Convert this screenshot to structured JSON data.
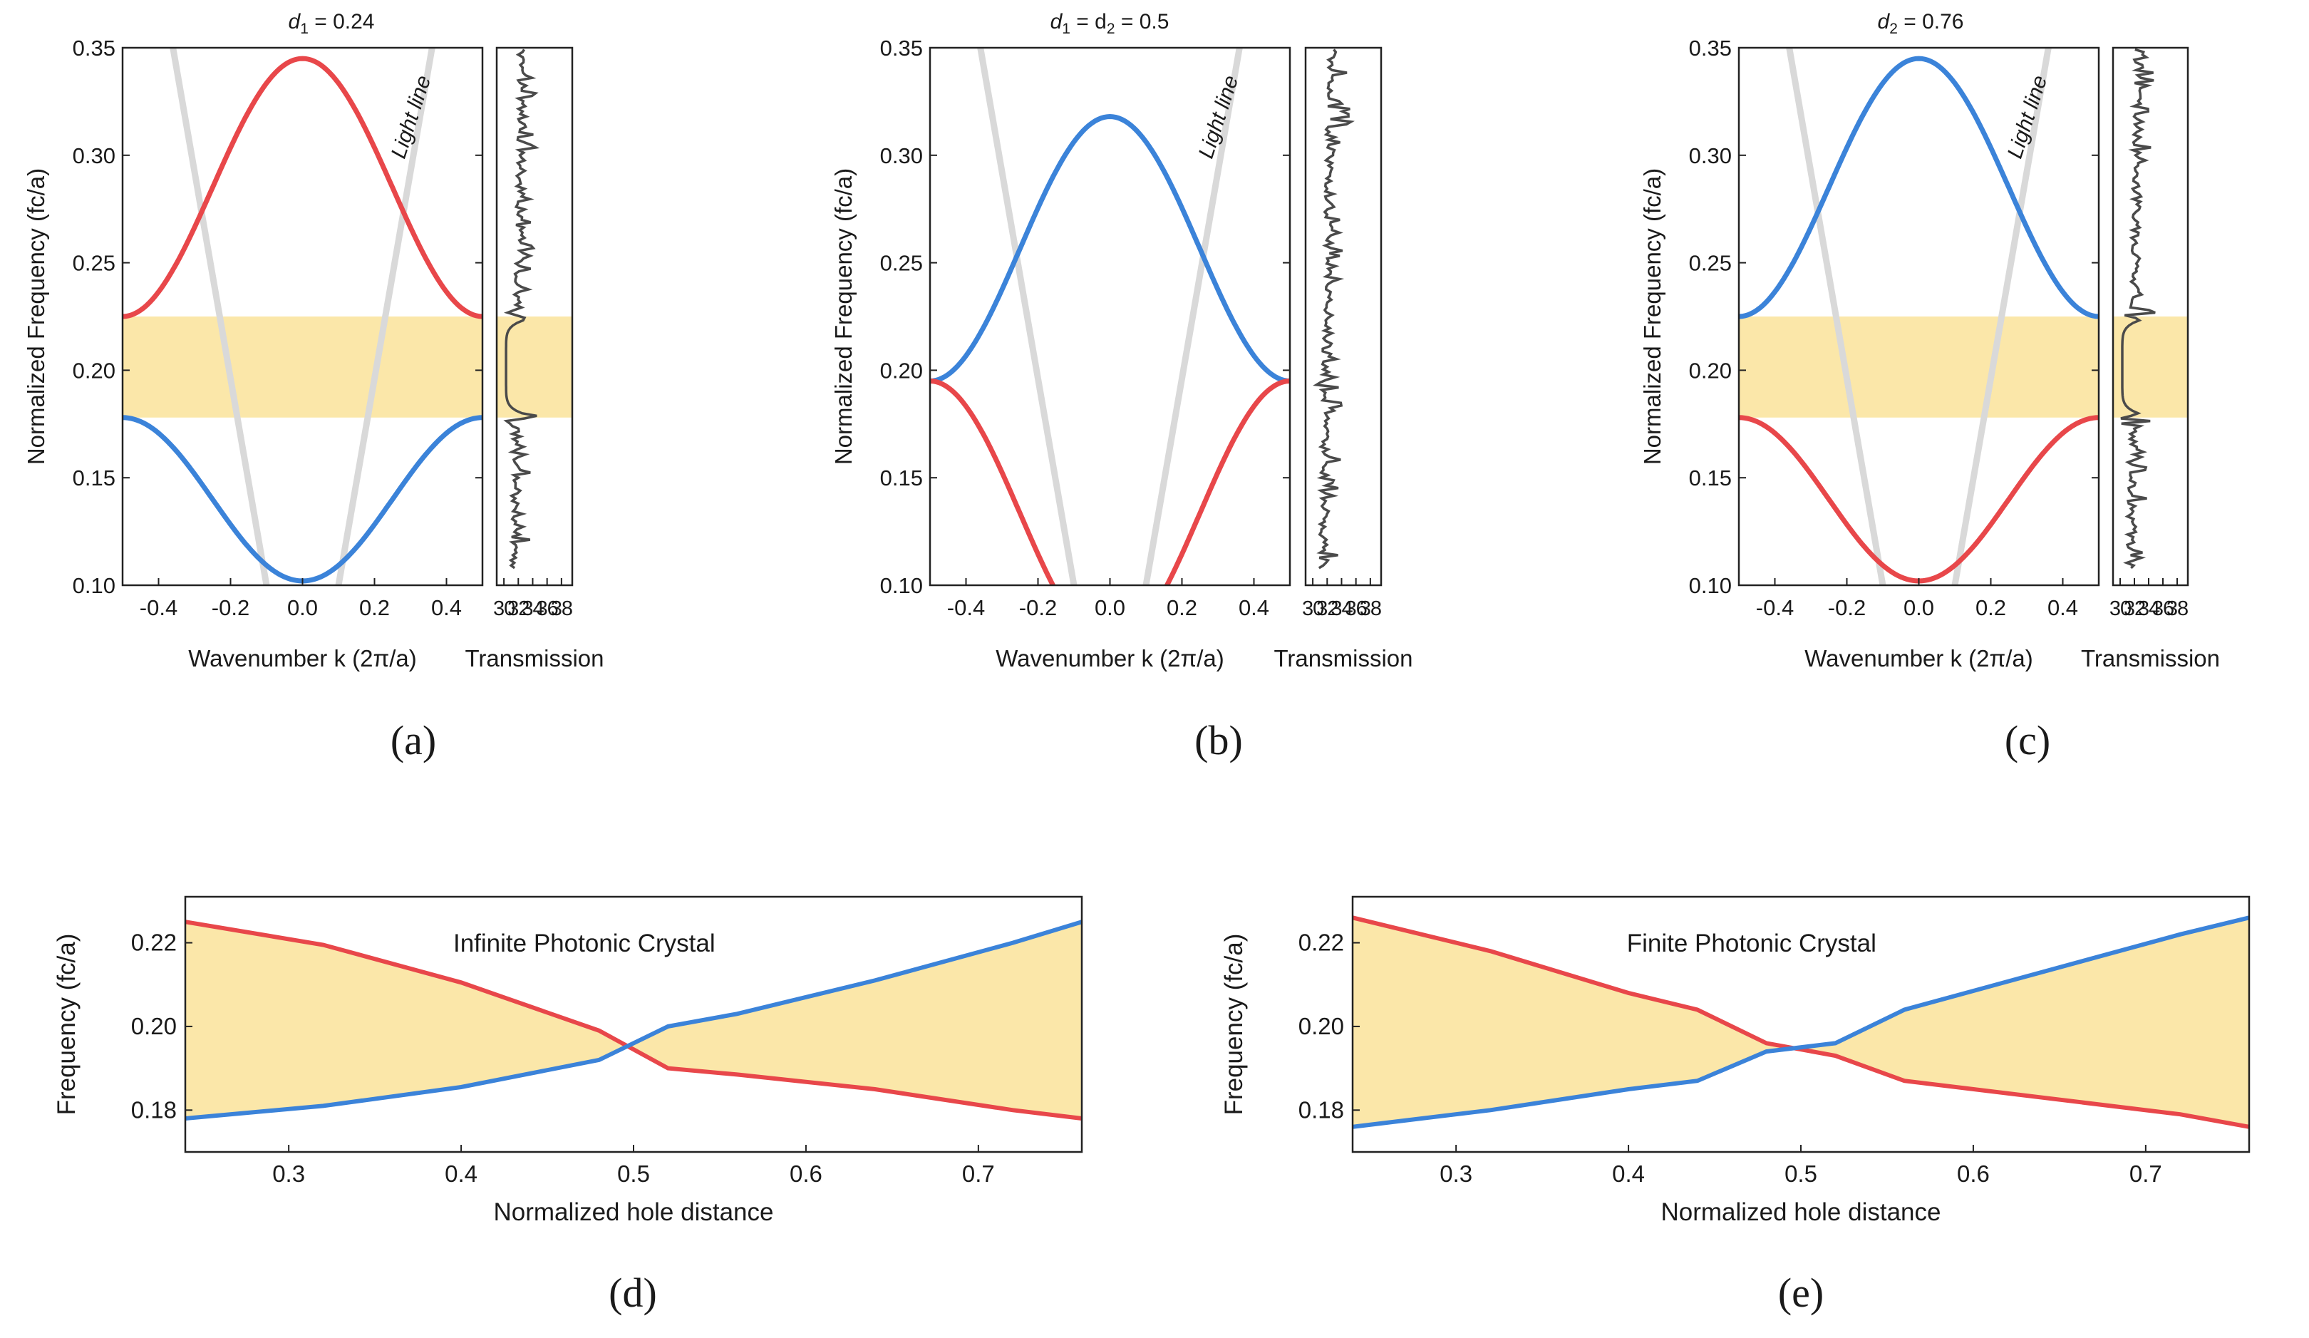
{
  "figure": {
    "panels_top": [
      {
        "id": "a",
        "title_main": "d",
        "title_sub": "1",
        "title_rest": " = 0.24",
        "caption": "(a)",
        "ylabel": "Normalized  Frequency  (fc/a)",
        "xlabel": "Wavenumber k (2π/a)",
        "trans_xlabel": "Transmission",
        "light_line_label": "Light line",
        "upper_band_color": "#e8474a",
        "lower_band_color": "#3b83d9",
        "upper_k0": 0.345,
        "upper_edge": 0.225,
        "lower_k0": 0.102,
        "lower_edge": 0.178,
        "gap": [
          0.178,
          0.225
        ],
        "trans_edge_low": 0.178,
        "trans_edge_high": 0.225
      },
      {
        "id": "b",
        "title_main": "d",
        "title_sub": "1",
        "title_rest": " = d",
        "title_sub2": "2",
        "title_end": " = 0.5",
        "caption": "(b)",
        "ylabel": "Normalized Frequency (fc/a)",
        "xlabel": "Wavenumber k (2π/a)",
        "trans_xlabel": "Transmission",
        "light_line_label": "Light line",
        "upper_band_color": "#3b83d9",
        "lower_band_color": "#e8474a",
        "upper_k0": 0.318,
        "upper_edge": 0.195,
        "lower_k0": 0.072,
        "lower_edge": 0.195,
        "gap": null,
        "trans_edge_low": 0.195,
        "trans_edge_high": 0.318
      },
      {
        "id": "c",
        "title_main": "d",
        "title_sub": "2",
        "title_rest": " = 0.76",
        "caption": "(c)",
        "ylabel": "Normalized Frequency (fc/a)",
        "xlabel": "Wavenumber k (2π/a)",
        "trans_xlabel": "Transmission",
        "light_line_label": "Light line",
        "upper_band_color": "#3b83d9",
        "lower_band_color": "#e8474a",
        "upper_k0": 0.345,
        "upper_edge": 0.225,
        "lower_k0": 0.102,
        "lower_edge": 0.178,
        "gap": [
          0.178,
          0.225
        ],
        "trans_edge_low": 0.178,
        "trans_edge_high": 0.225
      }
    ],
    "panels_bottom": [
      {
        "id": "d",
        "caption": "(d)",
        "annotation": "Infinite Photonic Crystal",
        "ylabel": "Frequency (fc/a)",
        "xlabel": "Normalized hole distance",
        "red_x": [
          0.24,
          0.32,
          0.4,
          0.48,
          0.52,
          0.56,
          0.64,
          0.72,
          0.76
        ],
        "red_y": [
          0.225,
          0.2195,
          0.2105,
          0.199,
          0.19,
          0.1885,
          0.185,
          0.18,
          0.178
        ],
        "blue_x": [
          0.24,
          0.32,
          0.4,
          0.48,
          0.52,
          0.56,
          0.64,
          0.72,
          0.76
        ],
        "blue_y": [
          0.178,
          0.181,
          0.1855,
          0.192,
          0.2,
          0.203,
          0.211,
          0.22,
          0.225
        ]
      },
      {
        "id": "e",
        "caption": "(e)",
        "annotation": "Finite Photonic Crystal",
        "ylabel": "Frequency (fc/a)",
        "xlabel": "Normalized hole distance",
        "red_x": [
          0.24,
          0.32,
          0.4,
          0.44,
          0.48,
          0.52,
          0.56,
          0.64,
          0.72,
          0.76
        ],
        "red_y": [
          0.226,
          0.218,
          0.208,
          0.204,
          0.196,
          0.193,
          0.187,
          0.183,
          0.179,
          0.176
        ],
        "blue_x": [
          0.24,
          0.32,
          0.4,
          0.44,
          0.48,
          0.52,
          0.56,
          0.64,
          0.72,
          0.76
        ],
        "blue_y": [
          0.176,
          0.18,
          0.185,
          0.187,
          0.194,
          0.196,
          0.204,
          0.213,
          0.222,
          0.226
        ]
      }
    ]
  },
  "chart_data": [
    {
      "type": "line",
      "title": "d1 = 0.24",
      "xlabel": "Wavenumber k (2π/a)",
      "ylabel": "Normalized  Frequency  (fc/a)",
      "xlim": [
        -0.5,
        0.5
      ],
      "ylim": [
        0.1,
        0.35
      ],
      "x_ticks": [
        "-0.4",
        "-0.2",
        "0.0",
        "0.2",
        "0.4"
      ],
      "y_ticks": [
        "0.10",
        "0.15",
        "0.20",
        "0.25",
        "0.30",
        "0.35"
      ],
      "series": [
        {
          "name": "upper band (red)",
          "x": [
            -0.5,
            -0.25,
            0.0,
            0.25,
            0.5
          ],
          "values": [
            0.225,
            0.275,
            0.345,
            0.275,
            0.225
          ]
        },
        {
          "name": "lower band (blue)",
          "x": [
            -0.5,
            -0.25,
            0.0,
            0.25,
            0.5
          ],
          "values": [
            0.178,
            0.15,
            0.102,
            0.15,
            0.178
          ]
        }
      ],
      "band_gap": [
        0.178,
        0.225
      ],
      "annotations": [
        "Light line"
      ]
    },
    {
      "type": "line",
      "title": "d1 = 0.24 transmission",
      "xlabel": "Transmission",
      "x_ticks": [
        "30",
        "32",
        "34",
        "36",
        "38"
      ],
      "xlim": [
        29,
        39.5
      ],
      "ylim": [
        0.1,
        0.35
      ]
    },
    {
      "type": "line",
      "title": "d1 = d2 = 0.5",
      "xlabel": "Wavenumber k (2π/a)",
      "ylabel": "Normalized Frequency (fc/a)",
      "xlim": [
        -0.5,
        0.5
      ],
      "ylim": [
        0.1,
        0.35
      ],
      "x_ticks": [
        "-0.4",
        "-0.2",
        "0.0",
        "0.2",
        "0.4"
      ],
      "y_ticks": [
        "0.10",
        "0.15",
        "0.20",
        "0.25",
        "0.30",
        "0.35"
      ],
      "series": [
        {
          "name": "upper band (blue)",
          "x": [
            -0.5,
            -0.25,
            0.0,
            0.25,
            0.5
          ],
          "values": [
            0.195,
            0.257,
            0.318,
            0.257,
            0.195
          ]
        },
        {
          "name": "lower band (red)",
          "x": [
            -0.5,
            -0.25,
            0.0,
            0.25,
            0.5
          ],
          "values": [
            0.195,
            0.134,
            0.072,
            0.134,
            0.195
          ]
        }
      ],
      "annotations": [
        "Light line"
      ]
    },
    {
      "type": "line",
      "title": "d1 = d2 = 0.5 transmission",
      "xlabel": "Transmission",
      "x_ticks": [
        "30",
        "32",
        "34",
        "36",
        "38"
      ],
      "xlim": [
        29,
        39.5
      ],
      "ylim": [
        0.1,
        0.35
      ]
    },
    {
      "type": "line",
      "title": "d2 = 0.76",
      "xlabel": "Wavenumber k (2π/a)",
      "ylabel": "Normalized Frequency (fc/a)",
      "xlim": [
        -0.5,
        0.5
      ],
      "ylim": [
        0.1,
        0.35
      ],
      "x_ticks": [
        "-0.4",
        "-0.2",
        "0.0",
        "0.2",
        "0.4"
      ],
      "y_ticks": [
        "0.10",
        "0.15",
        "0.20",
        "0.25",
        "0.30",
        "0.35"
      ],
      "series": [
        {
          "name": "upper band (blue)",
          "x": [
            -0.5,
            -0.25,
            0.0,
            0.25,
            0.5
          ],
          "values": [
            0.225,
            0.275,
            0.345,
            0.275,
            0.225
          ]
        },
        {
          "name": "lower band (red)",
          "x": [
            -0.5,
            -0.25,
            0.0,
            0.25,
            0.5
          ],
          "values": [
            0.178,
            0.15,
            0.102,
            0.15,
            0.178
          ]
        }
      ],
      "band_gap": [
        0.178,
        0.225
      ],
      "annotations": [
        "Light line"
      ]
    },
    {
      "type": "line",
      "title": "d2 = 0.76 transmission",
      "xlabel": "Transmission",
      "x_ticks": [
        "30",
        "32",
        "34",
        "36",
        "38"
      ],
      "xlim": [
        29,
        39.5
      ],
      "ylim": [
        0.1,
        0.35
      ]
    },
    {
      "type": "area",
      "title": "Infinite Photonic Crystal",
      "xlabel": "Normalized hole distance",
      "ylabel": "Frequency (fc/a)",
      "xlim": [
        0.24,
        0.76
      ],
      "ylim": [
        0.17,
        0.231
      ],
      "x_ticks": [
        "0.3",
        "0.4",
        "0.5",
        "0.6",
        "0.7"
      ],
      "y_ticks": [
        "0.18",
        "0.20",
        "0.22"
      ],
      "series": [
        {
          "name": "red band edge",
          "x": [
            0.24,
            0.32,
            0.4,
            0.48,
            0.52,
            0.56,
            0.64,
            0.72,
            0.76
          ],
          "values": [
            0.225,
            0.2195,
            0.2105,
            0.199,
            0.19,
            0.1885,
            0.185,
            0.18,
            0.178
          ]
        },
        {
          "name": "blue band edge",
          "x": [
            0.24,
            0.32,
            0.4,
            0.48,
            0.52,
            0.56,
            0.64,
            0.72,
            0.76
          ],
          "values": [
            0.178,
            0.181,
            0.1855,
            0.192,
            0.2,
            0.203,
            0.211,
            0.22,
            0.225
          ]
        }
      ]
    },
    {
      "type": "area",
      "title": "Finite Photonic Crystal",
      "xlabel": "Normalized hole distance",
      "ylabel": "Frequency (fc/a)",
      "xlim": [
        0.24,
        0.76
      ],
      "ylim": [
        0.17,
        0.231
      ],
      "x_ticks": [
        "0.3",
        "0.4",
        "0.5",
        "0.6",
        "0.7"
      ],
      "y_ticks": [
        "0.18",
        "0.20",
        "0.22"
      ],
      "series": [
        {
          "name": "red band edge",
          "x": [
            0.24,
            0.32,
            0.4,
            0.44,
            0.48,
            0.52,
            0.56,
            0.64,
            0.72,
            0.76
          ],
          "values": [
            0.226,
            0.218,
            0.208,
            0.204,
            0.196,
            0.193,
            0.187,
            0.183,
            0.179,
            0.176
          ]
        },
        {
          "name": "blue band edge",
          "x": [
            0.24,
            0.32,
            0.4,
            0.44,
            0.48,
            0.52,
            0.56,
            0.64,
            0.72,
            0.76
          ],
          "values": [
            0.176,
            0.18,
            0.185,
            0.187,
            0.194,
            0.196,
            0.204,
            0.213,
            0.222,
            0.226
          ]
        }
      ]
    }
  ],
  "colors": {
    "red": "#e8474a",
    "blue": "#3b83d9",
    "gap_fill": "#fbe7a9",
    "light_line": "#d9d9d9",
    "transmission": "#4a4a4a"
  }
}
